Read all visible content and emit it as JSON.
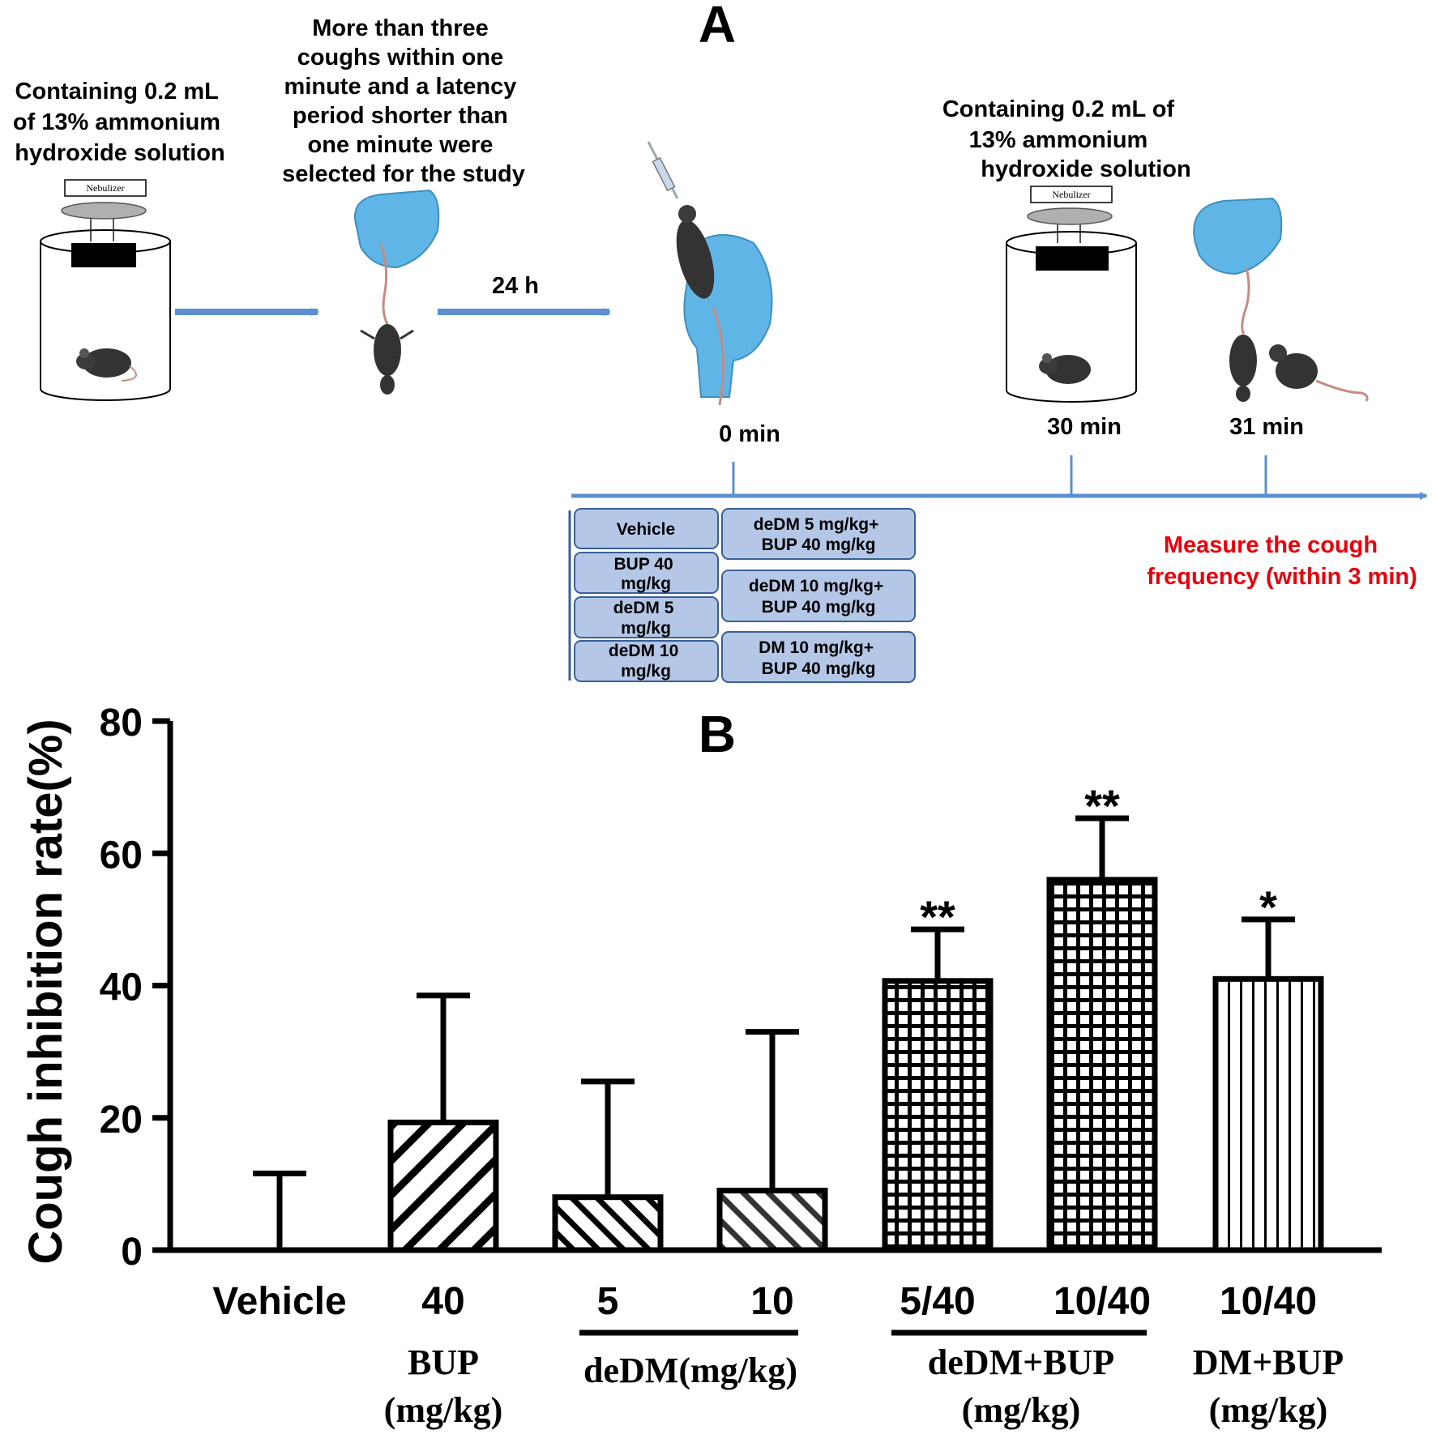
{
  "panel_a": {
    "label": "A",
    "step1_text": [
      "Containing 0.2 mL",
      "of 13% ammonium",
      "hydroxide solution"
    ],
    "step2_text": [
      "More than three",
      "coughs within one",
      "minute and a latency",
      "period shorter than",
      "one minute were",
      "selected for the study"
    ],
    "step3_text": [
      "Containing 0.2 mL of",
      "13% ammonium",
      "hydroxide solution"
    ],
    "nebulizer_label": "Nebulizer",
    "arrow_label": "24 h",
    "time_labels": [
      "0 min",
      "30 min",
      "31 min"
    ],
    "groups_left": [
      [
        "Vehicle"
      ],
      [
        "BUP 40",
        "mg/kg"
      ],
      [
        "deDM 5",
        "mg/kg"
      ],
      [
        "deDM 10",
        "mg/kg"
      ]
    ],
    "groups_right": [
      [
        "deDM 5 mg/kg+",
        "BUP 40 mg/kg"
      ],
      [
        "deDM 10 mg/kg+",
        "BUP 40 mg/kg"
      ],
      [
        "DM 10 mg/kg+",
        "BUP 40 mg/kg"
      ]
    ],
    "measure_text": [
      "Measure the cough",
      "frequency (within 3 min)"
    ],
    "colors": {
      "arrow": "#5b8fd0",
      "box_fill": "#b4c7e7",
      "box_stroke": "#3a5f94",
      "measure": "#e8000b",
      "glove": "#5fb6e6"
    }
  },
  "chart_data": {
    "type": "bar",
    "panel_label": "B",
    "ylabel": "Cough inhibition rate(%)",
    "ylim": [
      0,
      80
    ],
    "yticks": [
      0,
      20,
      40,
      60,
      80
    ],
    "categories": [
      "Vehicle",
      "40",
      "5",
      "10",
      "5/40",
      "10/40",
      "10/40"
    ],
    "values": [
      0,
      19.3,
      8,
      9,
      40.7,
      56,
      41
    ],
    "errors": [
      11.6,
      19.2,
      17.5,
      24,
      7.8,
      9.3,
      9
    ],
    "significance": [
      "",
      "",
      "",
      "",
      "**",
      "**",
      "*"
    ],
    "patterns": [
      "none",
      "diag-wide",
      "diag",
      "diag-gray",
      "grid",
      "grid",
      "vertical"
    ],
    "group_labels": [
      {
        "lines": [
          "BUP",
          "(mg/kg)"
        ]
      },
      {
        "lines": [
          "deDM(mg/kg)"
        ]
      },
      {
        "lines": [
          "deDM+BUP",
          "(mg/kg)"
        ]
      },
      {
        "lines": [
          "DM+BUP",
          "(mg/kg)"
        ]
      }
    ]
  }
}
